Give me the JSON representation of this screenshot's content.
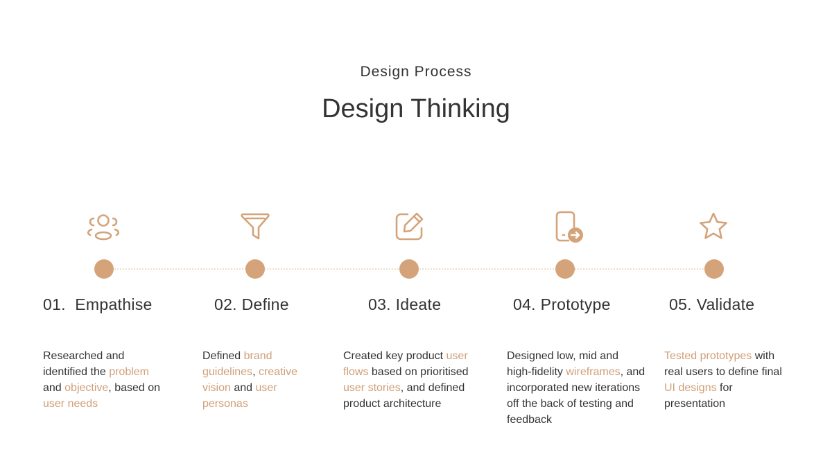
{
  "header": {
    "eyebrow": "Design Process",
    "title": "Design Thinking"
  },
  "colors": {
    "accent": "#d4a37a",
    "highlight_text": "#cf9f78",
    "timeline": "#f0dcc8",
    "text": "#333333"
  },
  "steps": [
    {
      "icon": "users-icon",
      "title": "01.  Empathise",
      "description": [
        {
          "text": "Researched and identified the ",
          "hl": false
        },
        {
          "text": "problem",
          "hl": true
        },
        {
          "text": " and ",
          "hl": false
        },
        {
          "text": "objective",
          "hl": true
        },
        {
          "text": ", based on ",
          "hl": false
        },
        {
          "text": "user needs",
          "hl": true
        }
      ]
    },
    {
      "icon": "filter-icon",
      "title": "02. Define",
      "description": [
        {
          "text": "Defined ",
          "hl": false
        },
        {
          "text": "brand guidelines",
          "hl": true
        },
        {
          "text": ", ",
          "hl": false
        },
        {
          "text": "creative vision",
          "hl": true
        },
        {
          "text": " and ",
          "hl": false
        },
        {
          "text": "user personas",
          "hl": true
        }
      ]
    },
    {
      "icon": "edit-icon",
      "title": "03. Ideate",
      "description": [
        {
          "text": "Created key product ",
          "hl": false
        },
        {
          "text": "user flows",
          "hl": true
        },
        {
          "text": " based on prioritised ",
          "hl": false
        },
        {
          "text": "user stories",
          "hl": true
        },
        {
          "text": ", and defined product architecture",
          "hl": false
        }
      ]
    },
    {
      "icon": "mobile-arrow-icon",
      "title": "04. Prototype",
      "description": [
        {
          "text": "Designed low, mid and high-fidelity ",
          "hl": false
        },
        {
          "text": "wireframes",
          "hl": true
        },
        {
          "text": ", and incorporated new iterations off the back of testing and feedback",
          "hl": false
        }
      ]
    },
    {
      "icon": "star-icon",
      "title": "05. Validate",
      "description": [
        {
          "text": "Tested prototypes",
          "hl": true
        },
        {
          "text": " with real users to define final ",
          "hl": false
        },
        {
          "text": "UI designs",
          "hl": true
        },
        {
          "text": " for presentation",
          "hl": false
        }
      ]
    }
  ]
}
